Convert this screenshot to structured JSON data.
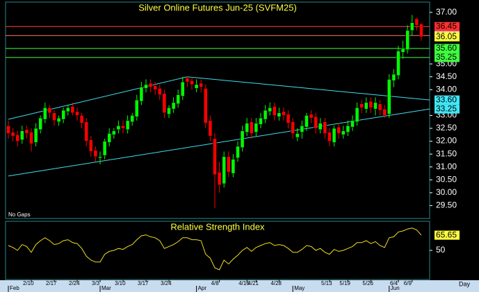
{
  "chart_data": [
    {
      "type": "candlestick",
      "title": "Silver Online Futures Jun-25 (SVFM25)",
      "note": "No Gaps",
      "up_color": "#00ff00",
      "down_color": "#ff0000",
      "open": [
        32.6,
        32.35,
        32.25,
        32.05,
        32.45,
        32.35,
        31.95,
        32.45,
        32.85,
        33.3,
        33.1,
        32.75,
        32.85,
        33.15,
        33.35,
        33.15,
        33.0,
        32.75,
        32.05,
        31.65,
        31.35,
        31.45,
        31.95,
        32.25,
        32.45,
        32.6,
        32.45,
        32.75,
        32.95,
        33.55,
        34.05,
        34.25,
        34.15,
        34.05,
        33.85,
        33.05,
        33.25,
        33.45,
        33.75,
        34.45,
        34.35,
        34.05,
        34.25,
        34.05,
        32.8,
        32.1,
        30.8,
        30.35,
        31.4,
        30.75,
        31.35,
        31.75,
        32.35,
        32.75,
        32.35,
        32.65,
        32.85,
        33.15,
        33.35,
        32.95,
        33.15,
        33.05,
        32.75,
        32.15,
        32.35,
        32.55,
        33.05,
        32.95,
        32.45,
        32.75,
        32.35,
        31.95,
        32.55,
        32.25,
        32.35,
        32.55,
        32.75,
        33.45,
        33.25,
        33.55,
        33.25,
        33.45,
        33.25,
        33.05,
        34.35,
        34.55,
        35.45,
        35.55,
        36.3,
        36.75,
        36.55
      ],
      "high": [
        32.8,
        32.5,
        32.4,
        32.6,
        32.6,
        32.5,
        32.7,
        33.0,
        33.5,
        33.4,
        33.2,
        33.0,
        33.3,
        33.4,
        33.5,
        33.3,
        33.1,
        32.9,
        32.2,
        31.8,
        31.6,
        32.1,
        32.5,
        32.5,
        32.8,
        32.8,
        33.0,
        33.1,
        33.8,
        34.3,
        34.4,
        34.4,
        34.3,
        34.2,
        34.0,
        33.4,
        33.7,
        34.0,
        34.5,
        34.5,
        34.5,
        34.4,
        34.4,
        34.2,
        33.0,
        32.3,
        31.2,
        31.6,
        31.6,
        31.5,
        32.0,
        32.6,
        32.9,
        32.9,
        32.9,
        33.1,
        33.4,
        33.5,
        33.5,
        33.3,
        33.3,
        33.2,
        32.9,
        32.5,
        32.8,
        33.1,
        33.2,
        33.1,
        32.9,
        32.9,
        32.5,
        32.6,
        32.7,
        32.6,
        32.8,
        33.0,
        33.5,
        33.6,
        33.7,
        33.7,
        33.7,
        33.6,
        33.4,
        34.6,
        34.8,
        35.7,
        35.9,
        36.5,
        36.9,
        36.8,
        36.6
      ],
      "low": [
        32.1,
        32.0,
        31.8,
        31.9,
        32.1,
        31.6,
        31.8,
        32.3,
        32.7,
        32.9,
        32.6,
        32.6,
        32.7,
        33.0,
        33.0,
        32.8,
        32.5,
        31.8,
        31.4,
        31.2,
        31.1,
        31.3,
        31.8,
        32.1,
        32.3,
        32.3,
        32.3,
        32.6,
        32.8,
        33.4,
        33.9,
        33.9,
        33.8,
        33.6,
        32.9,
        32.9,
        33.1,
        33.3,
        33.6,
        34.1,
        34.0,
        33.9,
        33.9,
        32.5,
        32.0,
        29.4,
        30.0,
        30.2,
        30.6,
        30.6,
        31.2,
        31.6,
        32.2,
        32.1,
        32.2,
        32.5,
        32.7,
        33.0,
        32.8,
        32.8,
        32.8,
        32.5,
        32.1,
        32.0,
        32.1,
        32.4,
        32.7,
        32.3,
        32.3,
        32.1,
        31.8,
        31.8,
        32.1,
        32.1,
        32.2,
        32.4,
        32.6,
        33.1,
        33.1,
        33.1,
        33.0,
        33.0,
        32.9,
        32.9,
        34.1,
        34.4,
        35.2,
        35.4,
        36.1,
        36.3,
        35.9
      ],
      "close": [
        32.3,
        32.2,
        32.0,
        32.4,
        32.3,
        31.9,
        32.5,
        32.9,
        33.3,
        33.1,
        32.8,
        32.9,
        33.2,
        33.3,
        33.1,
        33.0,
        32.7,
        32.0,
        31.6,
        31.4,
        31.4,
        32.0,
        32.3,
        32.4,
        32.6,
        32.5,
        32.8,
        33.0,
        33.6,
        34.1,
        34.2,
        34.1,
        34.0,
        33.8,
        33.1,
        33.3,
        33.5,
        33.8,
        34.3,
        34.3,
        34.2,
        34.2,
        34.1,
        32.7,
        32.2,
        30.7,
        30.3,
        31.4,
        30.8,
        31.3,
        31.8,
        32.4,
        32.7,
        32.3,
        32.7,
        32.9,
        33.2,
        33.3,
        33.0,
        33.1,
        33.0,
        32.7,
        32.3,
        32.3,
        32.6,
        33.0,
        32.9,
        32.5,
        32.7,
        32.3,
        32.0,
        32.5,
        32.3,
        32.4,
        32.6,
        32.8,
        33.3,
        33.3,
        33.5,
        33.3,
        33.5,
        33.2,
        33.0,
        34.4,
        34.6,
        35.5,
        35.6,
        36.3,
        36.6,
        36.5,
        36.05
      ],
      "ylim": [
        29.0,
        37.4
      ],
      "yticks": [
        {
          "value": 37.0,
          "label": "37.00"
        },
        {
          "value": 35.0,
          "label": "35.00"
        },
        {
          "value": 34.5,
          "label": "34.50"
        },
        {
          "value": 34.0,
          "label": "34.00"
        },
        {
          "value": 33.0,
          "label": "33.00"
        },
        {
          "value": 32.5,
          "label": "32.50"
        },
        {
          "value": 32.0,
          "label": "32.00"
        },
        {
          "value": 31.5,
          "label": "31.50"
        },
        {
          "value": 31.0,
          "label": "31.00"
        },
        {
          "value": 30.5,
          "label": "30.50"
        },
        {
          "value": 30.0,
          "label": "30.00"
        },
        {
          "value": 29.5,
          "label": "29.50"
        }
      ],
      "hlines": [
        {
          "value": 36.45,
          "color": "#ff4040"
        },
        {
          "value": 36.1,
          "color": "#ff8060"
        },
        {
          "value": 35.6,
          "color": "#40ff40"
        },
        {
          "value": 35.25,
          "color": "#40ff40"
        }
      ],
      "trendlines": [
        {
          "color": "#40e0f0",
          "points": [
            [
              0,
              32.85
            ],
            [
              39,
              34.5
            ]
          ]
        },
        {
          "color": "#40e0f0",
          "points": [
            [
              39,
              34.5
            ],
            [
              92,
              33.6
            ]
          ]
        },
        {
          "color": "#40e0f0",
          "points": [
            [
              0,
              30.65
            ],
            [
              92,
              33.25
            ]
          ]
        }
      ],
      "price_labels": [
        {
          "value": 36.45,
          "label": "36.45",
          "bg": "#ff3030"
        },
        {
          "value": 36.1,
          "label": "36.10",
          "bg": "#ffc8b0"
        },
        {
          "value": 36.05,
          "label": "36.05",
          "bg": "#ffff40"
        },
        {
          "value": 35.6,
          "label": "35.60",
          "bg": "#40ff40"
        },
        {
          "value": 35.25,
          "label": "35.25",
          "bg": "#40ff40"
        },
        {
          "value": 33.6,
          "label": "33.60",
          "bg": "#40e8f8"
        },
        {
          "value": 33.25,
          "label": "33.25",
          "bg": "#40e8f8"
        }
      ],
      "x_ticks": [
        {
          "index": 5,
          "label": "2/10"
        },
        {
          "index": 10,
          "label": "2/17"
        },
        {
          "index": 15,
          "label": "2/24"
        },
        {
          "index": 20,
          "label": "3/3"
        },
        {
          "index": 25,
          "label": "3/10"
        },
        {
          "index": 30,
          "label": "3/17"
        },
        {
          "index": 35,
          "label": "3/24"
        },
        {
          "index": 46,
          "label": "4/8"
        },
        {
          "index": 52,
          "label": "4/16"
        },
        {
          "index": 54,
          "label": "4/21"
        },
        {
          "index": 59,
          "label": "4/28"
        },
        {
          "index": 70,
          "label": "5/13"
        },
        {
          "index": 74,
          "label": "5/19"
        },
        {
          "index": 79,
          "label": "5/26"
        },
        {
          "index": 85,
          "label": "6/4"
        },
        {
          "index": 88,
          "label": "6/9"
        }
      ],
      "month_ticks": [
        {
          "index": 0,
          "label": "Feb"
        },
        {
          "index": 20,
          "label": "Mar"
        },
        {
          "index": 41,
          "label": "Apr"
        },
        {
          "index": 62,
          "label": "May"
        },
        {
          "index": 83,
          "label": "Jun"
        }
      ],
      "period": "Day"
    },
    {
      "type": "line",
      "title": "Relative Strength Index",
      "color": "#f0e020",
      "values": [
        55,
        53,
        50,
        56,
        54,
        48,
        56,
        60,
        63,
        60,
        56,
        57,
        60,
        61,
        58,
        57,
        52,
        44,
        40,
        38,
        38,
        46,
        49,
        50,
        52,
        51,
        54,
        56,
        61,
        65,
        66,
        64,
        63,
        60,
        52,
        54,
        56,
        59,
        63,
        63,
        61,
        61,
        60,
        46,
        42,
        32,
        30,
        40,
        36,
        41,
        45,
        50,
        53,
        49,
        53,
        55,
        57,
        58,
        55,
        56,
        55,
        52,
        48,
        48,
        51,
        55,
        54,
        50,
        52,
        48,
        46,
        51,
        49,
        50,
        52,
        54,
        58,
        58,
        60,
        57,
        59,
        55,
        53,
        63,
        64,
        69,
        70,
        72,
        73,
        71,
        65.65
      ],
      "ylim": [
        20,
        80
      ],
      "yticks": [
        50
      ],
      "last_label": "65.65",
      "last_bg": "#ffff40"
    }
  ]
}
